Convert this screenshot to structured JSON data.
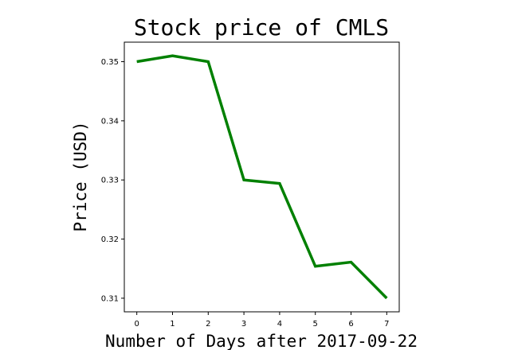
{
  "chart_data": {
    "type": "line",
    "title": "Stock price of CMLS",
    "xlabel": "Number of Days after 2017-09-22",
    "ylabel": "Price (USD)",
    "x": [
      0,
      1,
      2,
      3,
      4,
      5,
      6,
      7
    ],
    "series": [
      {
        "values": [
          0.35,
          0.351,
          0.35,
          0.33,
          0.3294,
          0.3154,
          0.3161,
          0.31
        ],
        "color": "#008000"
      }
    ],
    "xlim": [
      -0.35,
      7.35
    ],
    "ylim": [
      0.3077,
      0.3533
    ],
    "xticks": [
      "0",
      "1",
      "2",
      "3",
      "4",
      "5",
      "6",
      "7"
    ],
    "yticks": [
      "0.31",
      "0.32",
      "0.33",
      "0.34",
      "0.35"
    ],
    "grid": false
  }
}
